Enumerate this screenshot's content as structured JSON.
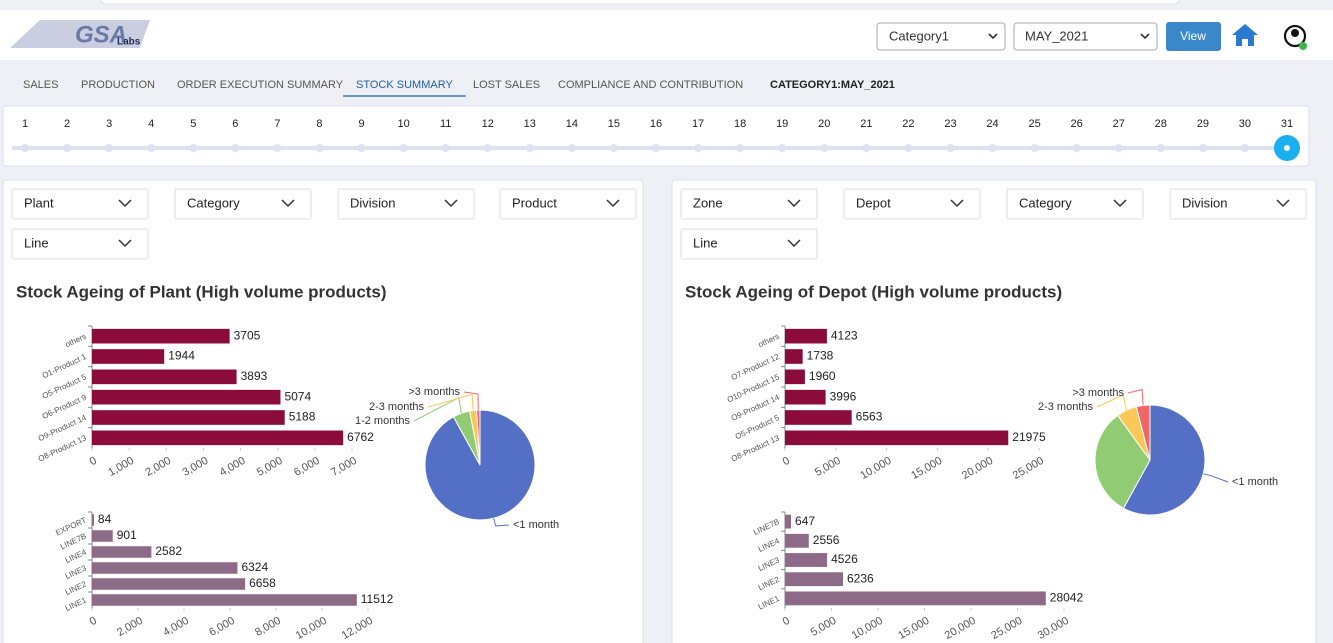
{
  "header": {
    "logo": "GSA",
    "logo_sub": "Labs",
    "selects": [
      "Category1",
      "MAY_2021"
    ],
    "button": "View"
  },
  "tabs": [
    {
      "label": "SALES"
    },
    {
      "label": "PRODUCTION"
    },
    {
      "label": "ORDER EXECUTION SUMMARY"
    },
    {
      "label": "STOCK SUMMARY",
      "active": true
    },
    {
      "label": "LOST SALES"
    },
    {
      "label": "COMPLIANCE AND CONTRIBUTION"
    }
  ],
  "context_label": "CATEGORY1:MAY_2021",
  "days": [
    1,
    2,
    3,
    4,
    5,
    6,
    7,
    8,
    9,
    10,
    11,
    12,
    13,
    14,
    15,
    16,
    17,
    18,
    19,
    20,
    21,
    22,
    23,
    24,
    25,
    26,
    27,
    28,
    29,
    30,
    31
  ],
  "selected_day": 31,
  "panels": [
    {
      "filters": [
        "Plant",
        "Category",
        "Division",
        "Product",
        "Line"
      ],
      "title": "Stock Ageing of Plant (High volume products)",
      "charts": [
        {
          "type": "bar",
          "orientation": "horizontal",
          "color": "#8b0b3b",
          "categories": [
            "others",
            "O1-Product 1",
            "O5-Product 5",
            "O6-Product 9",
            "O9-Product 14",
            "O8-Product 13"
          ],
          "values": [
            3705,
            1944,
            3893,
            5074,
            5188,
            6762
          ],
          "xlim": [
            0,
            7000
          ],
          "xticks": [
            0,
            {
              "value": 1000,
              "label": "1,000"
            },
            {
              "value": 2000,
              "label": "2,000"
            },
            {
              "value": 3000,
              "label": "3,000"
            },
            {
              "value": 4000,
              "label": "4,000"
            },
            {
              "value": 5000,
              "label": "5,000"
            },
            {
              "value": 6000,
              "label": "6,000"
            },
            {
              "value": 7000,
              "label": "7,000"
            }
          ]
        },
        {
          "type": "pie",
          "categories": [
            "<1 month",
            "1-2 months",
            "2-3 months",
            ">3 months"
          ],
          "values": [
            92,
            5,
            2,
            1
          ],
          "colors": [
            "#5470c6",
            "#91cc75",
            "#fac858",
            "#ee6666"
          ]
        },
        {
          "type": "bar",
          "orientation": "horizontal",
          "color": "#8c6a88",
          "categories": [
            "EXPORT",
            "LINE7B",
            "LINE4",
            "LINE3",
            "LINE2",
            "LINE1"
          ],
          "values": [
            84,
            901,
            2582,
            6324,
            6658,
            11512
          ],
          "xlim": [
            0,
            12000
          ],
          "xticks": [
            0,
            {
              "value": 2000,
              "label": "2,000"
            },
            {
              "value": 4000,
              "label": "4,000"
            },
            {
              "value": 6000,
              "label": "6,000"
            },
            {
              "value": 8000,
              "label": "8,000"
            },
            {
              "value": 10000,
              "label": "10,000"
            },
            {
              "value": 12000,
              "label": "12,000"
            }
          ]
        }
      ]
    },
    {
      "filters": [
        "Zone",
        "Depot",
        "Category",
        "Division",
        "Line"
      ],
      "title": "Stock Ageing of Depot (High volume products)",
      "charts": [
        {
          "type": "bar",
          "orientation": "horizontal",
          "color": "#8b0b3b",
          "categories": [
            "others",
            "O7-Product 12",
            "O10-Product 15",
            "O9-Product 14",
            "O5-Product 5",
            "O8-Product 13"
          ],
          "values": [
            4123,
            1738,
            1960,
            3996,
            6563,
            21975
          ],
          "xlim": [
            0,
            25000
          ],
          "xticks": [
            0,
            {
              "value": 5000,
              "label": "5,000"
            },
            {
              "value": 10000,
              "label": "10,000"
            },
            {
              "value": 15000,
              "label": "15,000"
            },
            {
              "value": 20000,
              "label": "20,000"
            },
            {
              "value": 25000,
              "label": "25,000"
            }
          ]
        },
        {
          "type": "pie",
          "categories": [
            "<1 month",
            null,
            "2-3 months",
            ">3 months"
          ],
          "values": [
            58,
            32,
            6,
            4
          ],
          "colors": [
            "#5470c6",
            "#91cc75",
            "#fac858",
            "#ee6666"
          ]
        },
        {
          "type": "bar",
          "orientation": "horizontal",
          "color": "#8c6a88",
          "categories": [
            "LINE7B",
            "LINE4",
            "LINE3",
            "LINE2",
            "LINE1"
          ],
          "values": [
            647,
            2556,
            4526,
            6236,
            28042
          ],
          "xlim": [
            0,
            30000
          ],
          "xticks": [
            0,
            {
              "value": 5000,
              "label": "5,000"
            },
            {
              "value": 10000,
              "label": "10,000"
            },
            {
              "value": 15000,
              "label": "15,000"
            },
            {
              "value": 20000,
              "label": "20,000"
            },
            {
              "value": 25000,
              "label": "25,000"
            },
            {
              "value": 30000,
              "label": "30,000"
            }
          ]
        }
      ]
    }
  ]
}
